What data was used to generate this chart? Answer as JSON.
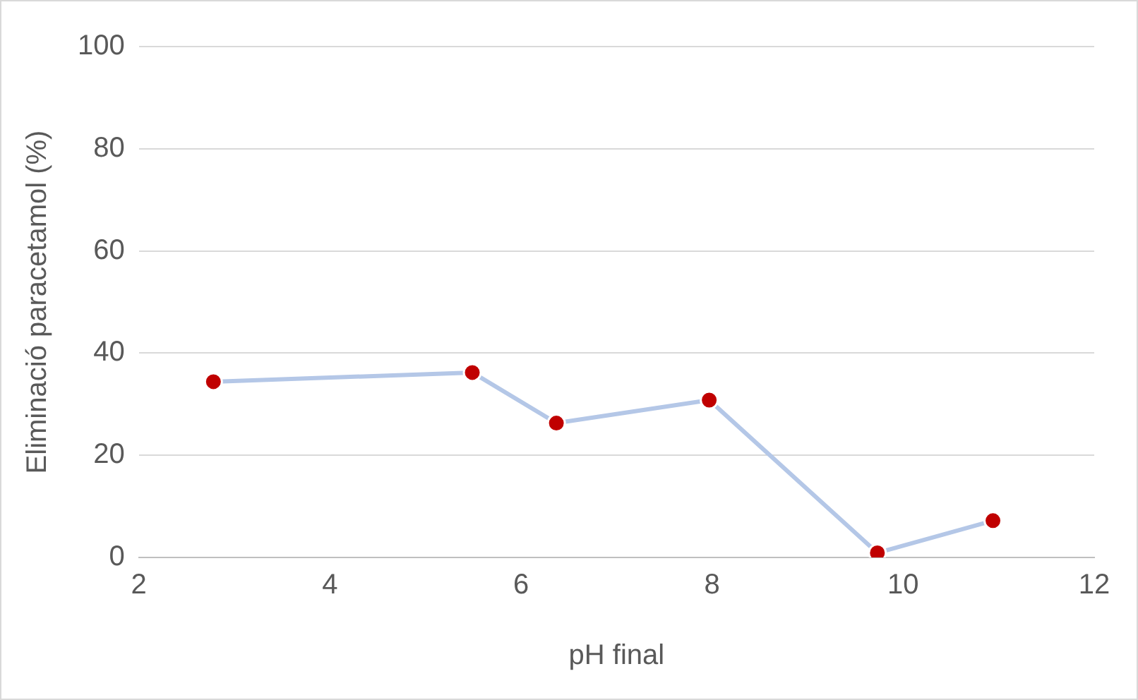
{
  "chart_data": {
    "type": "line",
    "xlabel": "pH final",
    "ylabel": "Eliminació paracetamol (%)",
    "x": [
      2.78,
      5.49,
      6.37,
      7.97,
      9.73,
      10.94
    ],
    "series": [
      {
        "color": "#b4c7e7",
        "values": [
          34.4,
          36.2,
          26.3,
          30.8,
          0.9,
          7.2
        ]
      }
    ],
    "marker": "circle",
    "line_style": "solid",
    "grid": "y",
    "legend": false,
    "xlim": [
      2,
      12
    ],
    "xticks": [
      2,
      4,
      6,
      8,
      10,
      12
    ],
    "ylim": [
      0,
      100
    ],
    "yticks": [
      0,
      20,
      40,
      60,
      80,
      100
    ]
  }
}
